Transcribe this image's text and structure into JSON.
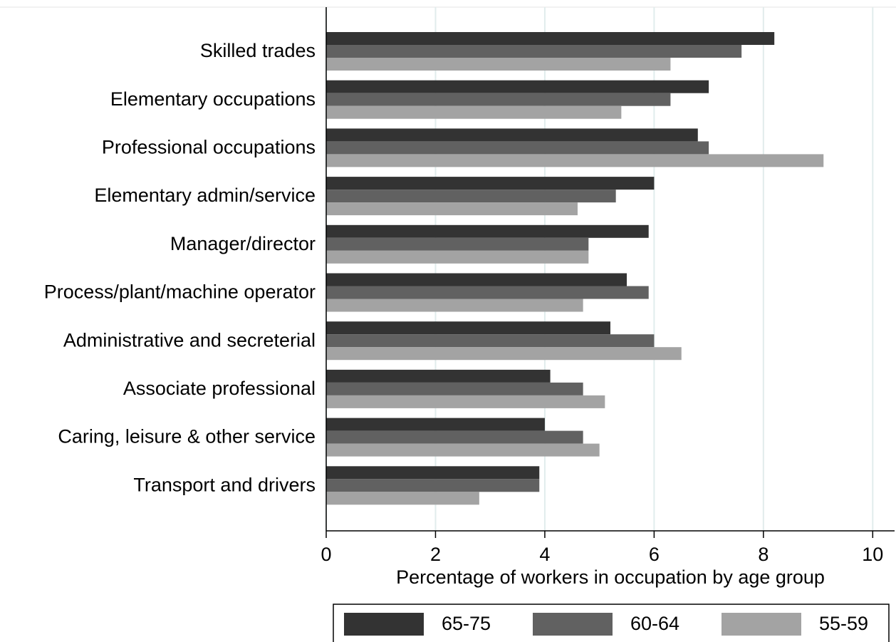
{
  "chart_data": {
    "type": "barh",
    "categories": [
      "Skilled trades",
      "Elementary occupations",
      "Professional occupations",
      "Elementary admin/service",
      "Manager/director",
      "Process/plant/machine operator",
      "Administrative and secreterial",
      "Associate professional",
      "Caring, leisure & other service",
      "Transport and drivers"
    ],
    "series": [
      {
        "name": "65-75",
        "color": "#333333",
        "values": [
          8.2,
          7.0,
          6.8,
          6.0,
          5.9,
          5.5,
          5.2,
          4.1,
          4.0,
          3.9
        ]
      },
      {
        "name": "60-64",
        "color": "#616161",
        "values": [
          7.6,
          6.3,
          7.0,
          5.3,
          4.8,
          5.9,
          6.0,
          4.7,
          4.7,
          3.9
        ]
      },
      {
        "name": "55-59",
        "color": "#a3a3a3",
        "values": [
          6.3,
          5.4,
          9.1,
          4.6,
          4.8,
          4.7,
          6.5,
          5.1,
          5.0,
          2.8
        ]
      }
    ],
    "x_label": "Percentage of workers in occupation by age group",
    "xlim": [
      0,
      10.4
    ],
    "xticks": [
      0,
      2,
      4,
      6,
      8,
      10
    ],
    "grid": true
  }
}
